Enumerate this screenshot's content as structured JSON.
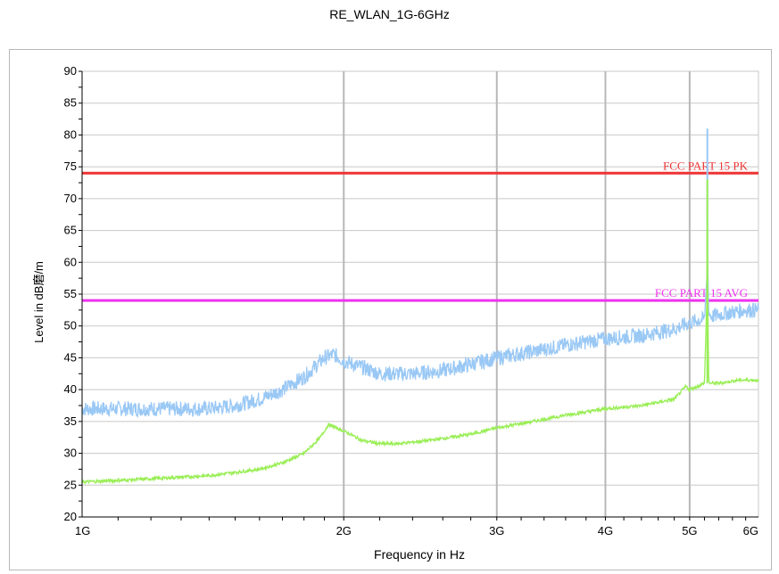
{
  "chart_data": {
    "type": "line",
    "title": "RE_WLAN_1G-6GHz",
    "xlabel": "Frequency in Hz",
    "ylabel": "Level in dB磨/m",
    "x_scale": "log",
    "xlim": [
      1000000000,
      6000000000
    ],
    "ylim": [
      20,
      90
    ],
    "y_ticks": [
      20,
      25,
      30,
      35,
      40,
      45,
      50,
      55,
      60,
      65,
      70,
      75,
      80,
      85,
      90
    ],
    "x_ticks": [
      {
        "value": 1000000000,
        "label": "1G"
      },
      {
        "value": 2000000000,
        "label": "2G"
      },
      {
        "value": 3000000000,
        "label": "3G"
      },
      {
        "value": 4000000000,
        "label": "4G"
      },
      {
        "value": 5000000000,
        "label": "5G"
      },
      {
        "value": 6000000000,
        "label": "6G"
      }
    ],
    "grid": true,
    "limit_lines": [
      {
        "label": "FCC PART 15  PK",
        "value": 74,
        "color": "#ee3333"
      },
      {
        "label": "FCC PART 15 AVG",
        "value": 54,
        "color": "#ee33ee"
      }
    ],
    "series": [
      {
        "color": "#99c8f5",
        "x": [
          1000000000,
          1200000000,
          1400000000,
          1500000000,
          1600000000,
          1700000000,
          1800000000,
          1900000000,
          1950000000,
          2000000000,
          2100000000,
          2200000000,
          2400000000,
          2600000000,
          2800000000,
          3000000000,
          3300000000,
          3600000000,
          4000000000,
          4400000000,
          4800000000,
          5000000000,
          5150000000,
          5200000000,
          5235000000,
          5240000000,
          5245000000,
          5260000000,
          5300000000,
          5500000000,
          5800000000,
          6000000000
        ],
        "values": [
          37,
          37,
          37,
          37.5,
          38.5,
          40,
          42,
          45,
          45.5,
          44.5,
          43.5,
          42.5,
          42.5,
          43,
          44,
          45,
          46,
          47,
          48,
          48.5,
          49.5,
          50.5,
          51,
          51,
          58,
          81,
          60,
          52,
          51.5,
          52,
          52.5,
          52.5
        ]
      },
      {
        "color": "#99ee55",
        "x": [
          1000000000,
          1200000000,
          1400000000,
          1500000000,
          1600000000,
          1700000000,
          1800000000,
          1880000000,
          1920000000,
          2000000000,
          2100000000,
          2200000000,
          2300000000,
          2500000000,
          2800000000,
          3000000000,
          3300000000,
          3600000000,
          4000000000,
          4400000000,
          4800000000,
          4950000000,
          5000000000,
          5100000000,
          5200000000,
          5235000000,
          5240000000,
          5245000000,
          5260000000,
          5400000000,
          5700000000,
          6000000000
        ],
        "values": [
          25.5,
          26,
          26.5,
          27,
          27.5,
          28.5,
          30,
          32.5,
          34.5,
          33.5,
          32,
          31.5,
          31.5,
          32,
          33,
          34,
          35,
          36,
          37,
          37.5,
          38.5,
          40.5,
          40,
          40.5,
          41,
          55,
          73,
          55,
          41,
          41,
          41.5,
          41.5
        ]
      }
    ]
  }
}
